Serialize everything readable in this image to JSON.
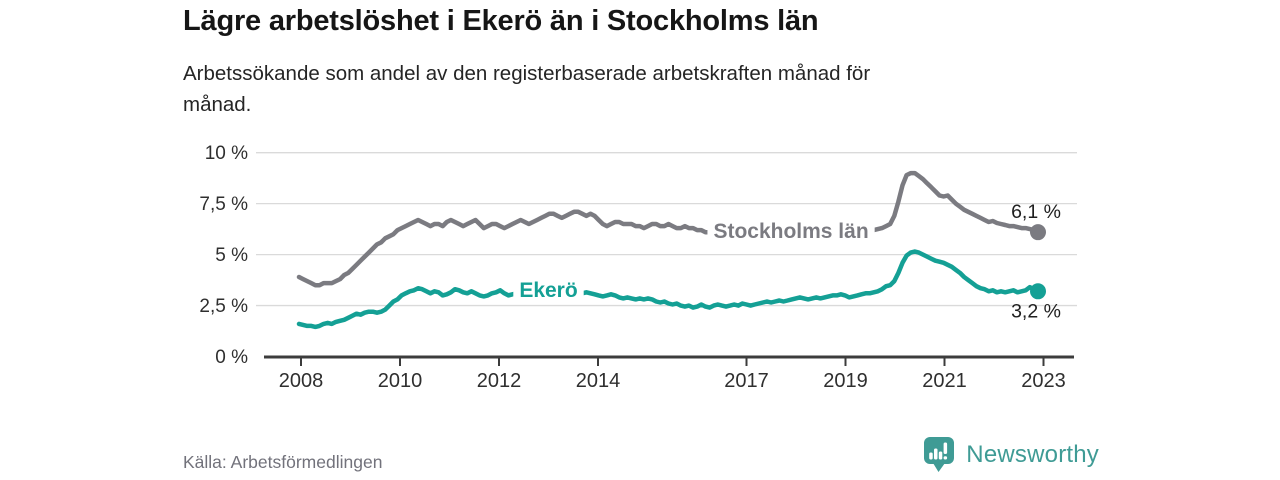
{
  "header": {
    "title": "Lägre arbetslöshet i Ekerö än i Stockholms län",
    "subtitle_line1": "Arbetssökande som andel av den registerbaserade arbetskraften månad för",
    "subtitle_line2": "månad."
  },
  "footer": {
    "source": "Källa: Arbetsförmedlingen",
    "brand_name": "Newsworthy"
  },
  "colors": {
    "background": "#ffffff",
    "stockholm_line": "#7b7b81",
    "ekero_line": "#14a095",
    "axis": "#3c3c3c",
    "grid": "#dadada",
    "tick_text": "#2f2f2f",
    "value_text": "#1f1f1f",
    "title_text": "#161616",
    "subtitle_text": "#252525",
    "muted_text": "#72727b",
    "brand": "#3f9b95"
  },
  "chart_data": {
    "type": "line",
    "unit": "%",
    "frequency": "monthly",
    "start_month": "2008-01",
    "end_month": "2023-01",
    "x_axis": {
      "ticks": [
        {
          "label": "2008",
          "year": 2008
        },
        {
          "label": "2010",
          "year": 2010
        },
        {
          "label": "2012",
          "year": 2012
        },
        {
          "label": "2014",
          "year": 2014
        },
        {
          "label": "2017",
          "year": 2017
        },
        {
          "label": "2019",
          "year": 2019
        },
        {
          "label": "2021",
          "year": 2021
        },
        {
          "label": "2023",
          "year": 2023
        }
      ]
    },
    "y_axis": {
      "grid": true,
      "range": [
        0,
        10.5
      ],
      "ticks": [
        {
          "label": "10 %",
          "value": 10
        },
        {
          "label": "7,5 %",
          "value": 7.5
        },
        {
          "label": "5 %",
          "value": 5
        },
        {
          "label": "2,5 %",
          "value": 2.5
        },
        {
          "label": "0 %",
          "value": 0
        }
      ]
    },
    "series": [
      {
        "name": "Stockholms län",
        "color_key": "stockholm_line",
        "end_label": "6,1 %",
        "end_value": 6.1,
        "end_label_pos": "above",
        "label_at": {
          "year": 2017.9,
          "value": 6.15
        },
        "values": [
          3.9,
          3.8,
          3.7,
          3.6,
          3.5,
          3.5,
          3.6,
          3.6,
          3.6,
          3.7,
          3.8,
          4.0,
          4.1,
          4.3,
          4.5,
          4.7,
          4.9,
          5.1,
          5.3,
          5.5,
          5.6,
          5.8,
          5.9,
          6.0,
          6.2,
          6.3,
          6.4,
          6.5,
          6.6,
          6.7,
          6.6,
          6.5,
          6.4,
          6.5,
          6.5,
          6.4,
          6.6,
          6.7,
          6.6,
          6.5,
          6.4,
          6.5,
          6.6,
          6.7,
          6.5,
          6.3,
          6.4,
          6.5,
          6.5,
          6.4,
          6.3,
          6.4,
          6.5,
          6.6,
          6.7,
          6.6,
          6.5,
          6.6,
          6.7,
          6.8,
          6.9,
          7.0,
          7.0,
          6.9,
          6.8,
          6.9,
          7.0,
          7.1,
          7.1,
          7.0,
          6.9,
          7.0,
          6.9,
          6.7,
          6.5,
          6.4,
          6.5,
          6.6,
          6.6,
          6.5,
          6.5,
          6.5,
          6.4,
          6.4,
          6.3,
          6.4,
          6.5,
          6.5,
          6.4,
          6.4,
          6.5,
          6.4,
          6.3,
          6.3,
          6.4,
          6.3,
          6.3,
          6.2,
          6.2,
          6.1,
          6.1,
          6.2,
          6.2,
          6.1,
          6.0,
          6.0,
          6.1,
          6.1,
          6.0,
          6.0,
          5.9,
          5.9,
          6.0,
          6.0,
          6.1,
          6.0,
          5.9,
          5.9,
          6.0,
          6.0,
          5.9,
          5.9,
          5.8,
          5.8,
          5.9,
          5.9,
          6.0,
          5.9,
          5.9,
          6.0,
          6.0,
          6.1,
          6.0,
          6.05,
          6.1,
          6.15,
          6.1,
          6.1,
          6.15,
          6.2,
          6.2,
          6.25,
          6.3,
          6.4,
          6.5,
          6.9,
          7.6,
          8.4,
          8.9,
          9.0,
          9.0,
          8.85,
          8.7,
          8.5,
          8.3,
          8.1,
          7.9,
          7.85,
          7.9,
          7.7,
          7.5,
          7.35,
          7.2,
          7.1,
          7.0,
          6.9,
          6.8,
          6.7,
          6.6,
          6.65,
          6.55,
          6.5,
          6.45,
          6.4,
          6.4,
          6.35,
          6.3,
          6.3,
          6.25,
          6.2,
          6.1
        ]
      },
      {
        "name": "Ekerö",
        "color_key": "ekero_line",
        "end_label": "3,2 %",
        "end_value": 3.2,
        "end_label_pos": "below",
        "label_at": {
          "year": 2013.0,
          "value": 3.27
        },
        "values": [
          1.6,
          1.55,
          1.5,
          1.5,
          1.45,
          1.5,
          1.6,
          1.65,
          1.6,
          1.7,
          1.75,
          1.8,
          1.9,
          2.0,
          2.1,
          2.05,
          2.15,
          2.2,
          2.2,
          2.15,
          2.2,
          2.3,
          2.5,
          2.7,
          2.8,
          3.0,
          3.1,
          3.2,
          3.25,
          3.35,
          3.3,
          3.2,
          3.1,
          3.2,
          3.15,
          3.0,
          3.05,
          3.15,
          3.3,
          3.25,
          3.15,
          3.1,
          3.2,
          3.1,
          3.0,
          2.95,
          3.0,
          3.1,
          3.15,
          3.25,
          3.1,
          3.0,
          3.05,
          3.1,
          3.15,
          3.05,
          3.0,
          3.05,
          3.1,
          3.05,
          3.1,
          3.15,
          3.1,
          3.05,
          3.1,
          3.15,
          3.2,
          3.1,
          3.05,
          3.1,
          3.15,
          3.1,
          3.05,
          3.0,
          2.95,
          3.0,
          3.05,
          3.0,
          2.9,
          2.85,
          2.9,
          2.85,
          2.8,
          2.85,
          2.8,
          2.85,
          2.8,
          2.7,
          2.65,
          2.7,
          2.6,
          2.55,
          2.6,
          2.5,
          2.45,
          2.5,
          2.4,
          2.45,
          2.55,
          2.45,
          2.4,
          2.5,
          2.55,
          2.5,
          2.45,
          2.5,
          2.55,
          2.5,
          2.6,
          2.55,
          2.5,
          2.55,
          2.6,
          2.65,
          2.7,
          2.65,
          2.7,
          2.75,
          2.7,
          2.75,
          2.8,
          2.85,
          2.9,
          2.85,
          2.8,
          2.85,
          2.9,
          2.85,
          2.9,
          2.95,
          3.0,
          3.0,
          3.05,
          3.0,
          2.9,
          2.95,
          3.0,
          3.05,
          3.1,
          3.1,
          3.15,
          3.2,
          3.3,
          3.45,
          3.5,
          3.7,
          4.1,
          4.6,
          4.95,
          5.1,
          5.15,
          5.1,
          5.0,
          4.9,
          4.8,
          4.7,
          4.65,
          4.6,
          4.5,
          4.4,
          4.25,
          4.1,
          3.9,
          3.75,
          3.6,
          3.45,
          3.35,
          3.3,
          3.2,
          3.25,
          3.15,
          3.2,
          3.15,
          3.2,
          3.25,
          3.15,
          3.2,
          3.25,
          3.4,
          3.3,
          3.2
        ]
      }
    ]
  }
}
